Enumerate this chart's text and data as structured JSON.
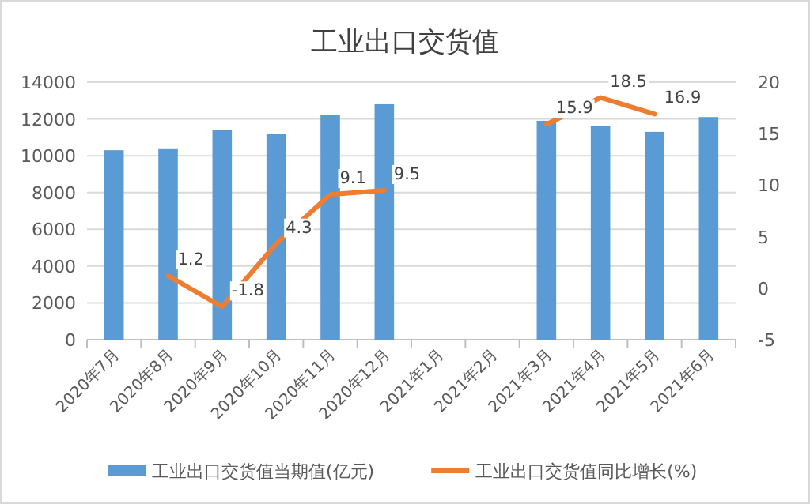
{
  "chart_data": {
    "type": "bar",
    "title": "工业出口交货值",
    "categories": [
      "2020年7月",
      "2020年8月",
      "2020年9月",
      "2020年10月",
      "2020年11月",
      "2020年12月",
      "2021年1月",
      "2021年2月",
      "2021年3月",
      "2021年4月",
      "2021年5月",
      "2021年6月"
    ],
    "series": [
      {
        "name": "工业出口交货值当期值(亿元)",
        "color": "#5b9bd5",
        "values": [
          10300,
          10400,
          11400,
          11200,
          12200,
          12800,
          null,
          null,
          11900,
          11600,
          11300,
          12100
        ]
      },
      {
        "name": "工业出口交货值同比增长(%)",
        "type": "line",
        "axis": "y2",
        "color": "#ed7d31",
        "values": [
          null,
          1.2,
          -1.8,
          4.3,
          9.1,
          9.5,
          null,
          null,
          15.9,
          18.5,
          16.9,
          null
        ],
        "value_labels": [
          null,
          "1.2",
          "-1.8",
          "4.3",
          "9.1",
          "9.5",
          null,
          null,
          "15.9",
          "18.5",
          "16.9",
          null
        ]
      }
    ],
    "ylim": [
      0,
      14000
    ],
    "yticks": [
      0,
      2000,
      4000,
      6000,
      8000,
      10000,
      12000,
      14000
    ],
    "y2lim": [
      -5,
      20
    ],
    "y2ticks": [
      -5,
      0,
      5,
      10,
      15,
      20
    ],
    "grid": "y",
    "legend": "bottom"
  }
}
